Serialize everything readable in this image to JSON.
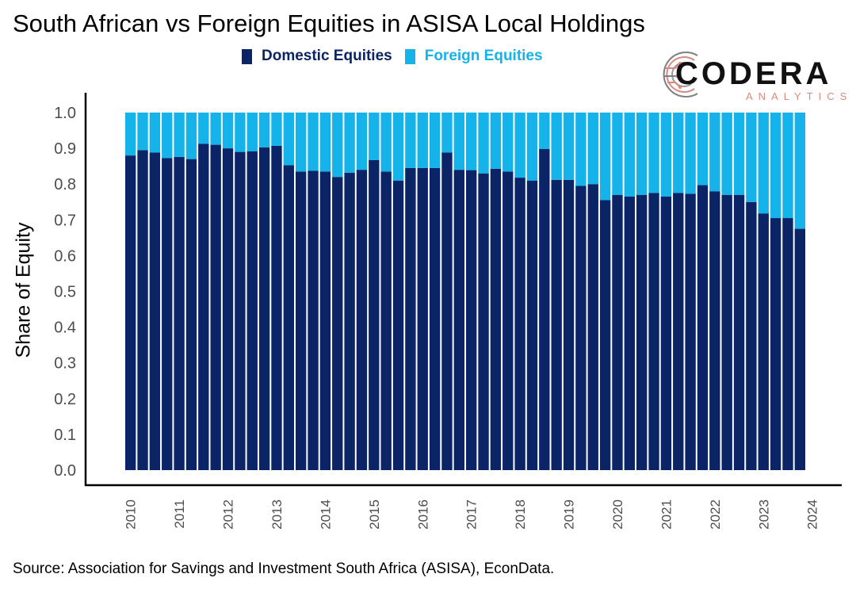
{
  "chart_data": {
    "type": "bar",
    "stacked": true,
    "title": "South African vs Foreign Equities in ASISA Local Holdings",
    "ylabel": "Share of Equity",
    "xlabel": "",
    "ylim": [
      0,
      1.0
    ],
    "yticks": [
      "0.0",
      "0.1",
      "0.2",
      "0.3",
      "0.4",
      "0.5",
      "0.6",
      "0.7",
      "0.8",
      "0.9",
      "1.0"
    ],
    "xticks": [
      "2010",
      "2011",
      "2012",
      "2013",
      "2014",
      "2015",
      "2016",
      "2017",
      "2018",
      "2019",
      "2020",
      "2021",
      "2022",
      "2023",
      "2024"
    ],
    "first_quarter": "2010Q1",
    "grid": false,
    "legend_position": "top",
    "series": [
      {
        "name": "Domestic Equities",
        "color": "#0b2466",
        "values": [
          0.88,
          0.895,
          0.888,
          0.873,
          0.876,
          0.87,
          0.913,
          0.91,
          0.9,
          0.89,
          0.892,
          0.903,
          0.907,
          0.853,
          0.835,
          0.837,
          0.835,
          0.82,
          0.832,
          0.84,
          0.867,
          0.835,
          0.81,
          0.845,
          0.845,
          0.845,
          0.888,
          0.84,
          0.839,
          0.83,
          0.843,
          0.835,
          0.818,
          0.81,
          0.898,
          0.812,
          0.812,
          0.795,
          0.8,
          0.755,
          0.77,
          0.765,
          0.77,
          0.775,
          0.765,
          0.775,
          0.773,
          0.797,
          0.78,
          0.77,
          0.77,
          0.75,
          0.718,
          0.705,
          0.705,
          0.675
        ]
      },
      {
        "name": "Foreign Equities",
        "color": "#16b2ea",
        "values": [
          0.12,
          0.105,
          0.112,
          0.127,
          0.124,
          0.13,
          0.087,
          0.09,
          0.1,
          0.11,
          0.108,
          0.097,
          0.093,
          0.147,
          0.165,
          0.163,
          0.165,
          0.18,
          0.168,
          0.16,
          0.133,
          0.165,
          0.19,
          0.155,
          0.155,
          0.155,
          0.112,
          0.16,
          0.161,
          0.17,
          0.157,
          0.165,
          0.182,
          0.19,
          0.102,
          0.188,
          0.188,
          0.205,
          0.2,
          0.245,
          0.23,
          0.235,
          0.23,
          0.225,
          0.235,
          0.225,
          0.227,
          0.203,
          0.22,
          0.23,
          0.23,
          0.25,
          0.282,
          0.295,
          0.295,
          0.325
        ]
      }
    ],
    "source": "Source: Association for Savings and Investment South Africa (ASISA), EconData."
  },
  "logo": {
    "word": "CODERA",
    "sub": "ANALYTICS",
    "accent_color": "#d98a7f"
  }
}
